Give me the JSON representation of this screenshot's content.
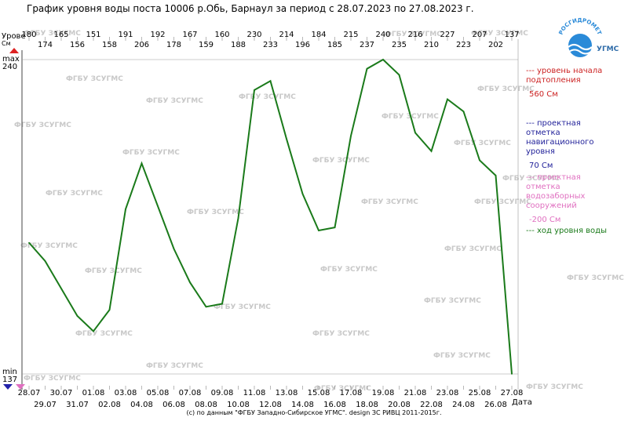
{
  "title": "График уровня воды поста 10006 р.Обь, Барнаул за период с 28.07.2023 по 27.08.2023 г.",
  "credit": "(с) по данным \"ФГБУ Западно-Сибирское УГМС\". design ЗС РИВЦ 2011-2015г.",
  "axis": {
    "ylabel_line1": "Урове",
    "ylabel_line2": "См",
    "max_label": "max",
    "max_value": "240",
    "min_label": "min",
    "min_value": "137",
    "xlabel": "Дата"
  },
  "legend": {
    "flood": {
      "caption": "--- уровень начала подтопления",
      "value": "560 См"
    },
    "navigation": {
      "caption": "--- проектная отметка навигационного уровня",
      "value": "70 См"
    },
    "intake": {
      "caption": "--- проектная отметка водозаборных сооружений",
      "value": "-200 См"
    },
    "course": {
      "caption": "--- ход уровня воды"
    }
  },
  "logo": {
    "arc_text": "РОСГИДРОМЕТ",
    "sub_text": "УГМС"
  },
  "watermark_text": "ФГБУ ЗСУГМС",
  "colors": {
    "series": "#1a7a1a",
    "flood": "#cc2222",
    "navigation": "#22229a",
    "intake": "#e070c0",
    "grid": "#999999",
    "watermark": "#c8c8c8",
    "logo": "#2a8ad8"
  },
  "chart_data": {
    "type": "line",
    "title": "График уровня воды поста 10006 р.Обь, Барнаул за период с 28.07.2023 по 27.08.2023 г.",
    "xlabel": "Дата",
    "ylabel": "Урове См",
    "ylim": [
      137,
      240
    ],
    "categories": [
      "28.07",
      "29.07",
      "30.07",
      "31.07",
      "01.08",
      "02.08",
      "03.08",
      "04.08",
      "05.08",
      "06.08",
      "07.08",
      "08.08",
      "09.08",
      "10.08",
      "11.08",
      "12.08",
      "13.08",
      "14.08",
      "15.08",
      "16.08",
      "17.08",
      "18.08",
      "19.08",
      "20.08",
      "21.08",
      "22.08",
      "23.08",
      "24.08",
      "25.08",
      "26.08",
      "27.08"
    ],
    "series": [
      {
        "name": "ход уровня воды",
        "values": [
          180,
          174,
          165,
          156,
          151,
          158,
          191,
          206,
          192,
          178,
          167,
          159,
          160,
          188,
          230,
          233,
          214,
          196,
          184,
          185,
          215,
          237,
          240,
          235,
          216,
          210,
          227,
          223,
          207,
          202,
          137
        ]
      }
    ],
    "grid": false
  }
}
